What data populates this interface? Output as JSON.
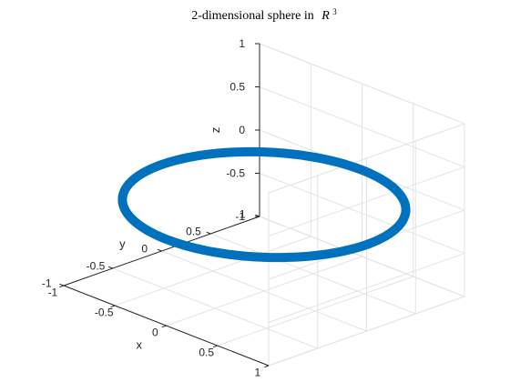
{
  "chart_data": {
    "type": "line",
    "title": "2-dimensional sphere in",
    "title_math": "R",
    "title_math_sup": "3",
    "xlabel": "x",
    "ylabel": "y",
    "zlabel": "z",
    "xlim": [
      -1,
      1
    ],
    "ylim": [
      -1,
      1
    ],
    "zlim": [
      -1,
      1
    ],
    "xticks": [
      -1,
      -0.5,
      0,
      0.5,
      1
    ],
    "yticks": [
      -1,
      -0.5,
      0,
      0.5,
      1
    ],
    "zticks": [
      -1,
      -0.5,
      0,
      0.5,
      1
    ],
    "xtick_labels": [
      "-1",
      "-0.5",
      "0",
      "0.5",
      "1"
    ],
    "ytick_labels": [
      "-1",
      "-0.5",
      "0",
      "0.5",
      "1"
    ],
    "ztick_labels": [
      "-1",
      "-0.5",
      "0",
      "0.5",
      "1"
    ],
    "grid": true,
    "series": [
      {
        "curve": "unit circle in the plane z = 0",
        "radius": 1,
        "center": [
          0,
          0,
          0
        ],
        "color": "#0072BD"
      }
    ]
  }
}
